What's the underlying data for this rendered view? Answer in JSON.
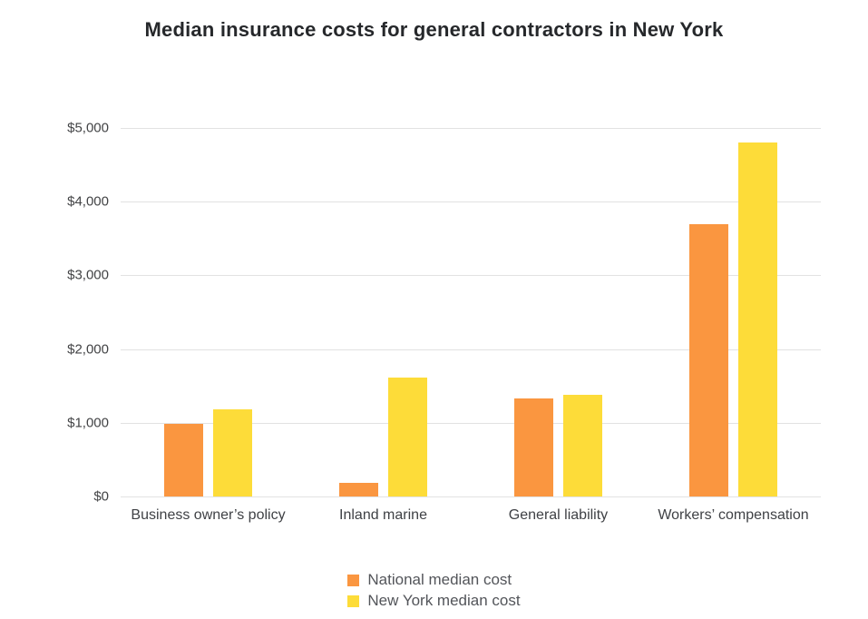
{
  "chart_data": {
    "type": "bar",
    "title": "Median insurance costs for general contractors in New York",
    "categories": [
      "Business owner’s policy",
      "Inland marine",
      "General liability",
      "Workers’ compensation"
    ],
    "series": [
      {
        "name": "National median cost",
        "color": "#FA9640",
        "values": [
          990,
          180,
          1325,
          3690
        ]
      },
      {
        "name": "New York median cost",
        "color": "#FDDC39",
        "values": [
          1180,
          1610,
          1375,
          4800
        ]
      }
    ],
    "xlabel": "",
    "ylabel": "",
    "ylim": [
      0,
      5000
    ],
    "yticks": [
      {
        "value": 0,
        "label": "$0"
      },
      {
        "value": 1000,
        "label": "$1,000"
      },
      {
        "value": 2000,
        "label": "$2,000"
      },
      {
        "value": 3000,
        "label": "$3,000"
      },
      {
        "value": 4000,
        "label": "$4,000"
      },
      {
        "value": 5000,
        "label": "$5,000"
      }
    ],
    "grid": true,
    "legend_position": "bottom"
  },
  "colors": {
    "background": "#ffffff",
    "grid": "#e2e2e2",
    "title_text": "#26282b",
    "axis_text": "#424345",
    "legend_text": "#53555a"
  }
}
